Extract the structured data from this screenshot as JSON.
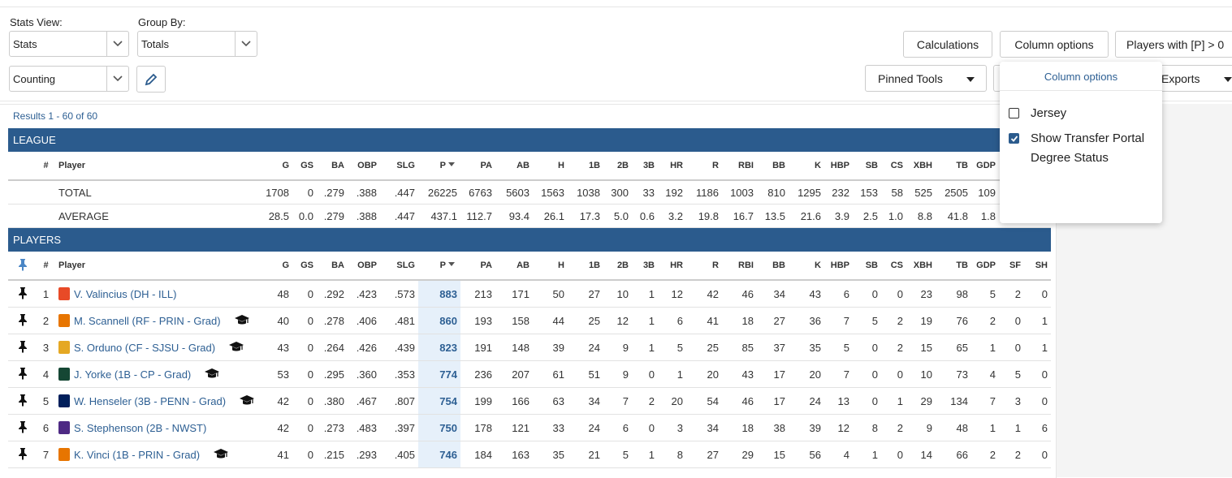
{
  "filters": {
    "stats_view": {
      "label": "Stats View:",
      "value": "Stats"
    },
    "group_by": {
      "label": "Group By:",
      "value": "Totals"
    },
    "mode": {
      "value": "Counting"
    }
  },
  "buttons": {
    "calculations": "Calculations",
    "column_options": "Column options",
    "players_filter": "Players with [P] > 0",
    "pinned_tools": "Pinned Tools",
    "exports": "Exports"
  },
  "column_menu": {
    "title": "Column options",
    "options": [
      {
        "label": "Jersey",
        "checked": false
      },
      {
        "label": "Show Transfer Portal Degree Status",
        "checked": true
      }
    ]
  },
  "results": "Results 1 - 60 of 60",
  "league": {
    "title": "LEAGUE",
    "sort_column_index": 7,
    "highlight_sort_column": false,
    "columns": [
      "#",
      "Player",
      "G",
      "GS",
      "BA",
      "OBP",
      "SLG",
      "P",
      "PA",
      "AB",
      "H",
      "1B",
      "2B",
      "3B",
      "HR",
      "R",
      "RBI",
      "BB",
      "K",
      "HBP",
      "SB",
      "CS",
      "XBH",
      "TB",
      "GDP"
    ],
    "rows": [
      {
        "label": "TOTAL",
        "stats": [
          "1708",
          "0",
          ".279",
          ".388",
          ".447",
          "26225",
          "6763",
          "5603",
          "1563",
          "1038",
          "300",
          "33",
          "192",
          "1186",
          "1003",
          "810",
          "1295",
          "232",
          "153",
          "58",
          "525",
          "2505",
          "109"
        ]
      },
      {
        "label": "AVERAGE",
        "stats": [
          "28.5",
          "0.0",
          ".279",
          ".388",
          ".447",
          "437.1",
          "112.7",
          "93.4",
          "26.1",
          "17.3",
          "5.0",
          "0.6",
          "3.2",
          "19.8",
          "16.7",
          "13.5",
          "21.6",
          "3.9",
          "2.5",
          "1.0",
          "8.8",
          "41.8",
          "1.8"
        ]
      }
    ]
  },
  "players": {
    "title": "PLAYERS",
    "sort_column_index": 7,
    "highlight_sort_column": true,
    "columns": [
      "#",
      "Player",
      "G",
      "GS",
      "BA",
      "OBP",
      "SLG",
      "P",
      "PA",
      "AB",
      "H",
      "1B",
      "2B",
      "3B",
      "HR",
      "R",
      "RBI",
      "BB",
      "K",
      "HBP",
      "SB",
      "CS",
      "XBH",
      "TB",
      "GDP",
      "SF",
      "SH"
    ],
    "rows": [
      {
        "rank": "1",
        "player": "V. Valincius (DH - ILL)",
        "logo_color": "#e84a27",
        "transfer_portal_icon": false,
        "stats": [
          "48",
          "0",
          ".292",
          ".423",
          ".573",
          "883",
          "213",
          "171",
          "50",
          "27",
          "10",
          "1",
          "12",
          "42",
          "46",
          "34",
          "43",
          "6",
          "0",
          "0",
          "23",
          "98",
          "5",
          "2",
          "0"
        ]
      },
      {
        "rank": "2",
        "player": "M. Scannell (RF - PRIN - Grad)",
        "logo_color": "#e77500",
        "transfer_portal_icon": true,
        "stats": [
          "40",
          "0",
          ".278",
          ".406",
          ".481",
          "860",
          "193",
          "158",
          "44",
          "25",
          "12",
          "1",
          "6",
          "41",
          "18",
          "27",
          "36",
          "7",
          "5",
          "2",
          "19",
          "76",
          "2",
          "0",
          "1"
        ]
      },
      {
        "rank": "3",
        "player": "S. Orduno (CF - SJSU - Grad)",
        "logo_color": "#e5a823",
        "transfer_portal_icon": true,
        "stats": [
          "43",
          "0",
          ".264",
          ".426",
          ".439",
          "823",
          "191",
          "148",
          "39",
          "24",
          "9",
          "1",
          "5",
          "25",
          "85",
          "37",
          "35",
          "5",
          "0",
          "2",
          "15",
          "65",
          "1",
          "0",
          "1"
        ]
      },
      {
        "rank": "4",
        "player": "J. Yorke (1B - CP - Grad)",
        "logo_color": "#154734",
        "transfer_portal_icon": true,
        "stats": [
          "53",
          "0",
          ".295",
          ".360",
          ".353",
          "774",
          "236",
          "207",
          "61",
          "51",
          "9",
          "0",
          "1",
          "20",
          "43",
          "17",
          "20",
          "7",
          "0",
          "0",
          "10",
          "73",
          "4",
          "5",
          "0"
        ]
      },
      {
        "rank": "5",
        "player": "W. Henseler (3B - PENN - Grad)",
        "logo_color": "#011f5b",
        "transfer_portal_icon": true,
        "stats": [
          "42",
          "0",
          ".380",
          ".467",
          ".807",
          "754",
          "199",
          "166",
          "63",
          "34",
          "7",
          "2",
          "20",
          "54",
          "46",
          "17",
          "24",
          "13",
          "0",
          "1",
          "29",
          "134",
          "7",
          "3",
          "0"
        ]
      },
      {
        "rank": "6",
        "player": "S. Stephenson (2B - NWST)",
        "logo_color": "#4e2a84",
        "transfer_portal_icon": false,
        "stats": [
          "42",
          "0",
          ".273",
          ".483",
          ".397",
          "750",
          "178",
          "121",
          "33",
          "24",
          "6",
          "0",
          "3",
          "34",
          "18",
          "38",
          "39",
          "12",
          "8",
          "2",
          "9",
          "48",
          "1",
          "1",
          "6"
        ]
      },
      {
        "rank": "7",
        "player": "K. Vinci (1B - PRIN - Grad)",
        "logo_color": "#e77500",
        "transfer_portal_icon": true,
        "stats": [
          "41",
          "0",
          ".215",
          ".293",
          ".405",
          "746",
          "184",
          "163",
          "35",
          "21",
          "5",
          "1",
          "8",
          "27",
          "29",
          "15",
          "56",
          "4",
          "1",
          "0",
          "14",
          "66",
          "2",
          "2",
          "0"
        ]
      }
    ]
  }
}
